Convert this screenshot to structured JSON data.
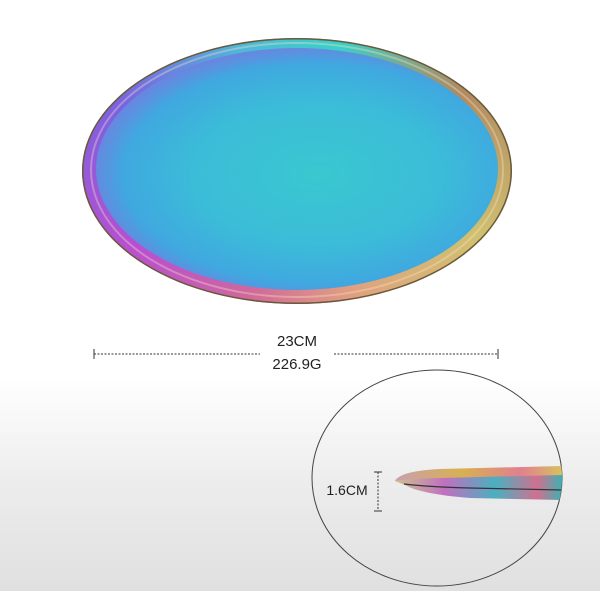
{
  "dimensions": {
    "diameter": "23CM",
    "weight": "226.9G",
    "height": "1.6CM"
  },
  "colors": {
    "rim": "#d06a9a",
    "center": "#3ac8d0",
    "edge": "#d050b8"
  }
}
